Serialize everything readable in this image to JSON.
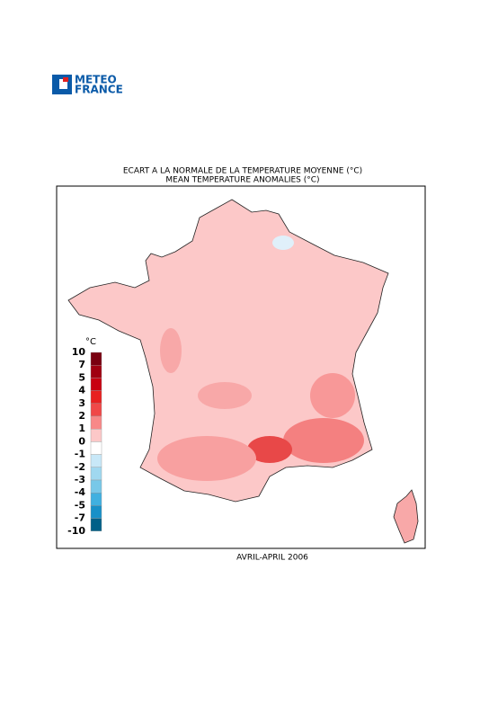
{
  "logo": {
    "line1": "METEO",
    "line2": "FRANCE"
  },
  "map": {
    "title": "ECART A LA NORMALE DE LA TEMPERATURE MOYENNE (°C)",
    "subtitle": "MEAN TEMPERATURE ANOMALIES (°C)",
    "caption": "AVRIL-APRIL 2006",
    "legend": {
      "unit": "°C",
      "ticks": [
        10,
        7,
        5,
        4,
        3,
        2,
        1,
        0,
        -1,
        -2,
        -3,
        -4,
        -5,
        -7,
        -10
      ],
      "colors": [
        "#7a0010",
        "#a00010",
        "#c80010",
        "#e82020",
        "#f04848",
        "#f88888",
        "#fcc8c8",
        "#ffffff",
        "#c8e8f8",
        "#a0d8f0",
        "#78c8e8",
        "#40b0e0",
        "#1890c8",
        "#006088"
      ]
    }
  }
}
